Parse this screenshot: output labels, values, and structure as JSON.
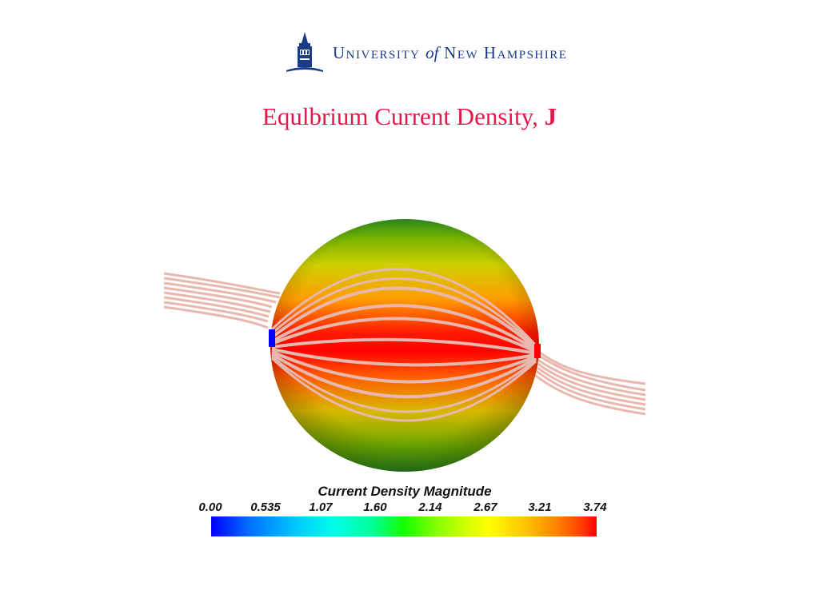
{
  "header": {
    "univ_first": "University",
    "univ_of": "of",
    "univ_last": "New Hampshire"
  },
  "title": {
    "text": "Equlbrium Current Density,",
    "symbol": "J"
  },
  "legend": {
    "title": "Current Density Magnitude",
    "ticks": [
      "0.00",
      "0.535",
      "1.07",
      "1.60",
      "2.14",
      "2.67",
      "3.21",
      "3.74"
    ],
    "colors": [
      "#0000ff",
      "#00ffff",
      "#00ff00",
      "#ffff00",
      "#ff0000"
    ]
  },
  "visualization": {
    "object": "sphere with current density streamlines",
    "streamline_color": "#e8b8ae",
    "surface_colors": [
      "#ff0000",
      "#ff6a00",
      "#d8d800",
      "#2e8b1e"
    ]
  }
}
